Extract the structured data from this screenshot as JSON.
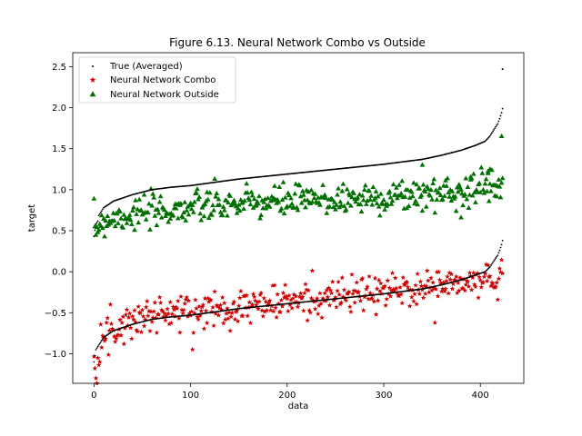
{
  "chart_data": {
    "type": "scatter",
    "title": "Figure 6.13. Neural Network Combo vs Outside",
    "xlabel": "data",
    "ylabel": "target",
    "xlim": [
      -22,
      445
    ],
    "ylim": [
      -1.36,
      2.67
    ],
    "xticks": [
      0,
      100,
      200,
      300,
      400
    ],
    "yticks": [
      -1.0,
      -0.5,
      0.0,
      0.5,
      1.0,
      1.5,
      2.0,
      2.5
    ],
    "grid": false,
    "legend_position": "top-left",
    "n_points": 424,
    "series": [
      {
        "name": "True (Averaged)",
        "marker": "dot",
        "color": "#000000",
        "curve": {
          "x": [
            0,
            2,
            10,
            20,
            40,
            60,
            80,
            100,
            150,
            200,
            250,
            300,
            340,
            360,
            380,
            400,
            405,
            410,
            415,
            418,
            420,
            422,
            423
          ],
          "y": [
            -1.1,
            -0.95,
            -0.8,
            -0.72,
            -0.64,
            -0.58,
            -0.55,
            -0.53,
            -0.45,
            -0.39,
            -0.33,
            -0.27,
            -0.21,
            -0.16,
            -0.1,
            -0.02,
            0.0,
            0.06,
            0.15,
            0.2,
            0.26,
            0.33,
            0.38
          ]
        },
        "extra_points": [
          [
            423,
            2.47
          ]
        ]
      },
      {
        "name": "Neural Network Combo",
        "marker": "star",
        "color": "#cc0000",
        "trend": {
          "x": [
            0,
            10,
            30,
            60,
            100,
            150,
            200,
            250,
            300,
            350,
            400,
            423
          ],
          "y": [
            -1.05,
            -0.8,
            -0.62,
            -0.52,
            -0.48,
            -0.42,
            -0.37,
            -0.3,
            -0.25,
            -0.18,
            -0.12,
            -0.08
          ]
        },
        "spread": 0.11
      },
      {
        "name": "Neural Network Outside",
        "marker": "triangle",
        "color": "#007000",
        "trend": {
          "x": [
            0,
            10,
            30,
            60,
            100,
            150,
            200,
            250,
            300,
            350,
            400,
            423
          ],
          "y": [
            0.5,
            0.63,
            0.68,
            0.72,
            0.78,
            0.82,
            0.86,
            0.88,
            0.91,
            0.95,
            1.02,
            1.1
          ]
        },
        "spread": 0.1,
        "outliers": [
          [
            422,
            1.65
          ],
          [
            410,
            1.25
          ],
          [
            408,
            1.2
          ],
          [
            380,
            0.66
          ],
          [
            390,
            1.12
          ],
          [
            340,
            1.3
          ]
        ]
      }
    ]
  }
}
